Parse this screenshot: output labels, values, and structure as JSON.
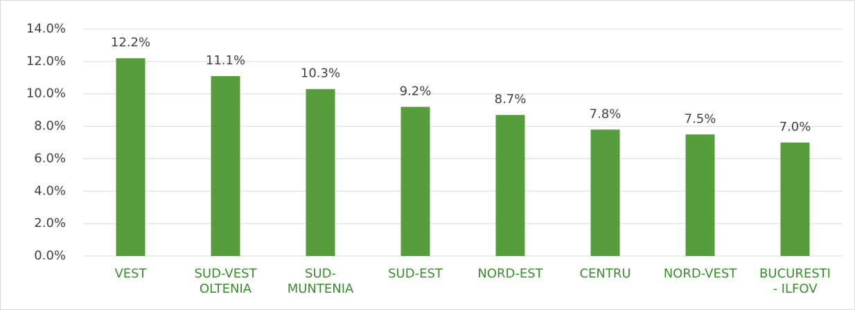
{
  "chart_data": {
    "type": "bar",
    "categories": [
      "VEST",
      "SUD-VEST OLTENIA",
      "SUD-MUNTENIA",
      "SUD-EST",
      "NORD-EST",
      "CENTRU",
      "NORD-VEST",
      "BUCURESTI - ILFOV"
    ],
    "values": [
      12.2,
      11.1,
      10.3,
      9.2,
      8.7,
      7.8,
      7.5,
      7.0
    ],
    "value_labels": [
      "12.2%",
      "11.1%",
      "10.3%",
      "9.2%",
      "8.7%",
      "7.8%",
      "7.5%",
      "7.0%"
    ],
    "color": "#579d3d",
    "ylim": [
      0,
      14
    ],
    "yticks": [
      {
        "value": 0,
        "label": "0.0%"
      },
      {
        "value": 2,
        "label": "2.0%"
      },
      {
        "value": 4,
        "label": "4.0%"
      },
      {
        "value": 6,
        "label": "6.0%"
      },
      {
        "value": 8,
        "label": "8.0%"
      },
      {
        "value": 10,
        "label": "10.0%"
      },
      {
        "value": 12,
        "label": "12.0%"
      },
      {
        "value": 14,
        "label": "14.0%"
      }
    ],
    "grid": true
  }
}
